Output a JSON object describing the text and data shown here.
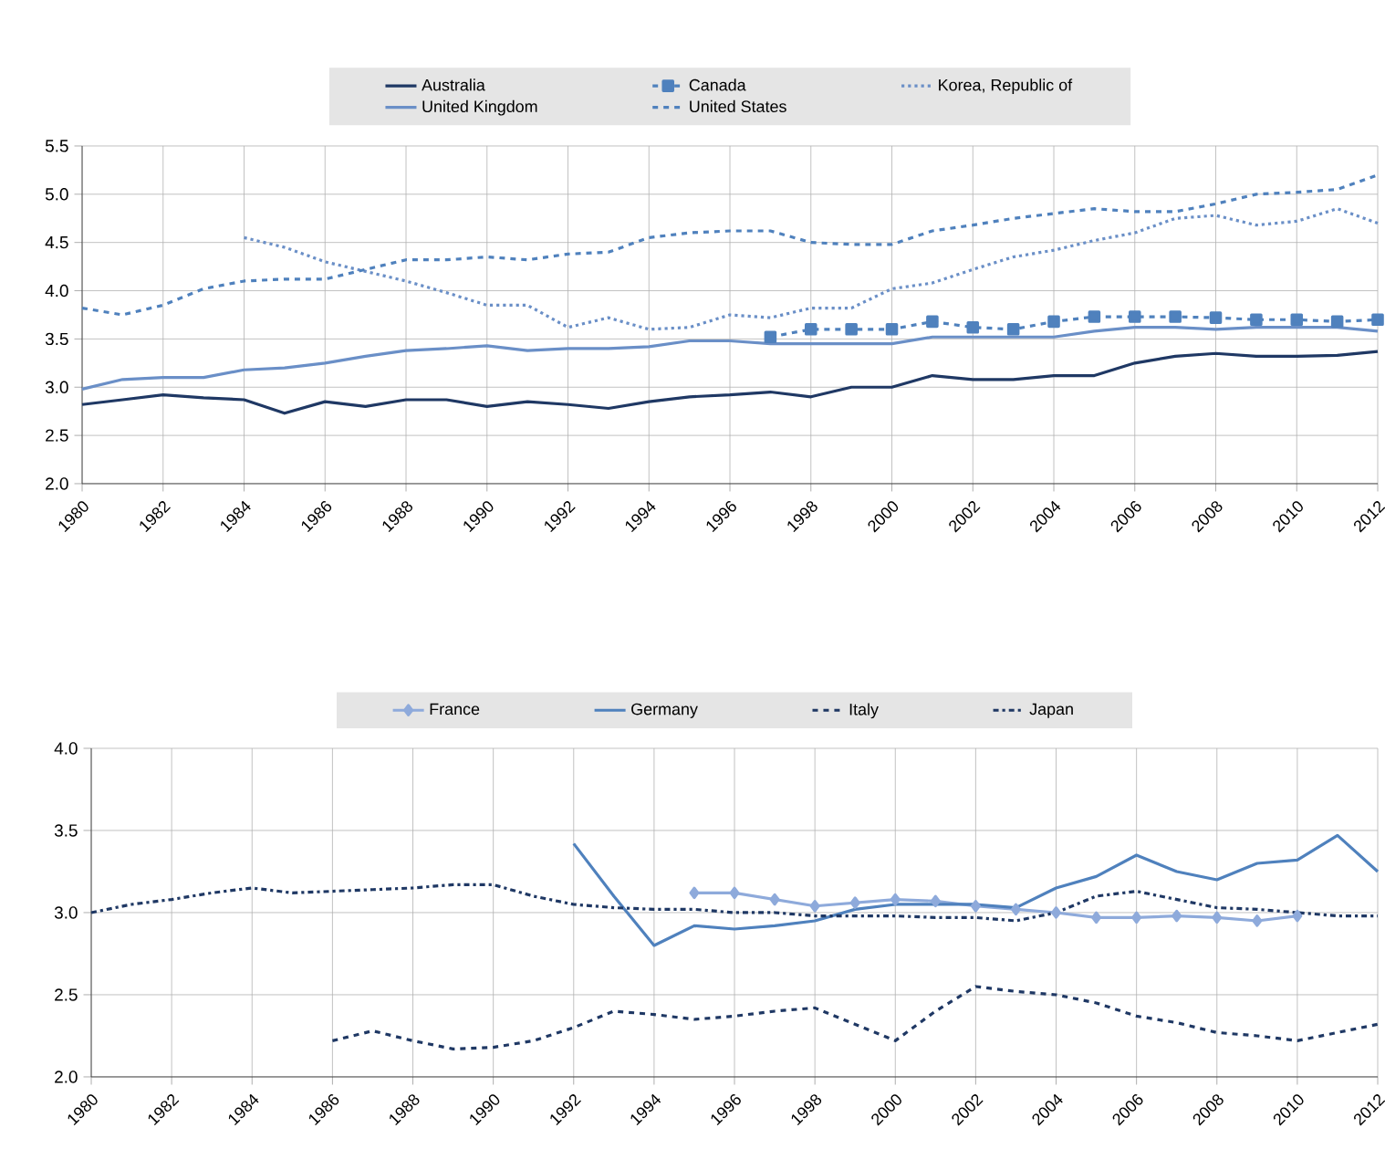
{
  "chart_data": [
    {
      "type": "line",
      "xlim": [
        1980,
        2012
      ],
      "ylim": [
        2.0,
        5.5
      ],
      "xticks": [
        1980,
        1982,
        1984,
        1986,
        1988,
        1990,
        1992,
        1994,
        1996,
        1998,
        2000,
        2002,
        2004,
        2006,
        2008,
        2010,
        2012
      ],
      "yticks": [
        {
          "value": 2.0,
          "label": "2.0"
        },
        {
          "value": 2.5,
          "label": "2.5"
        },
        {
          "value": 3.0,
          "label": "3.0"
        },
        {
          "value": 3.5,
          "label": "3.5"
        },
        {
          "value": 4.0,
          "label": "4.0"
        },
        {
          "value": 4.5,
          "label": "4.5"
        },
        {
          "value": 5.0,
          "label": "5.0"
        },
        {
          "value": 5.5,
          "label": "5.5"
        }
      ],
      "grid": true,
      "legend": "top",
      "series": [
        {
          "name": "Australia",
          "color": "#1f3864",
          "line_style": "solid",
          "x": [
            1980,
            1981,
            1982,
            1983,
            1984,
            1985,
            1986,
            1987,
            1988,
            1989,
            1990,
            1991,
            1992,
            1993,
            1994,
            1995,
            1996,
            1997,
            1998,
            1999,
            2000,
            2001,
            2002,
            2003,
            2004,
            2005,
            2006,
            2007,
            2008,
            2009,
            2010,
            2011,
            2012
          ],
          "values": [
            2.82,
            2.87,
            2.92,
            2.89,
            2.87,
            2.73,
            2.85,
            2.8,
            2.87,
            2.87,
            2.8,
            2.85,
            2.82,
            2.78,
            2.85,
            2.9,
            2.92,
            2.95,
            2.9,
            3.0,
            3.0,
            3.12,
            3.08,
            3.08,
            3.12,
            3.12,
            3.25,
            3.32,
            3.35,
            3.32,
            3.32,
            3.33,
            3.37
          ]
        },
        {
          "name": "Canada",
          "color": "#4f81bd",
          "line_style": "dashed",
          "marker": "square",
          "x": [
            1997,
            1998,
            1999,
            2000,
            2001,
            2002,
            2003,
            2004,
            2005,
            2006,
            2007,
            2008,
            2009,
            2010,
            2011,
            2012
          ],
          "values": [
            3.52,
            3.6,
            3.6,
            3.6,
            3.68,
            3.62,
            3.6,
            3.68,
            3.73,
            3.73,
            3.73,
            3.72,
            3.7,
            3.7,
            3.68,
            3.7
          ]
        },
        {
          "name": "Korea, Republic of",
          "color": "#6a8fc7",
          "line_style": "dotted",
          "x": [
            1984,
            1985,
            1986,
            1987,
            1988,
            1989,
            1990,
            1991,
            1992,
            1993,
            1994,
            1995,
            1996,
            1997,
            1998,
            1999,
            2000,
            2001,
            2002,
            2003,
            2004,
            2005,
            2006,
            2007,
            2008,
            2009,
            2010,
            2011,
            2012
          ],
          "values": [
            4.55,
            4.45,
            4.3,
            4.2,
            4.1,
            3.98,
            3.85,
            3.85,
            3.62,
            3.72,
            3.6,
            3.62,
            3.75,
            3.72,
            3.82,
            3.82,
            4.02,
            4.08,
            4.22,
            4.35,
            4.42,
            4.52,
            4.6,
            4.75,
            4.78,
            4.68,
            4.72,
            4.85,
            4.7
          ]
        },
        {
          "name": "United Kingdom",
          "color": "#6a8fc7",
          "line_style": "solid",
          "x": [
            1980,
            1981,
            1982,
            1983,
            1984,
            1985,
            1986,
            1987,
            1988,
            1989,
            1990,
            1991,
            1992,
            1993,
            1994,
            1995,
            1996,
            1997,
            1998,
            1999,
            2000,
            2001,
            2002,
            2003,
            2004,
            2005,
            2006,
            2007,
            2008,
            2009,
            2010,
            2011,
            2012
          ],
          "values": [
            2.98,
            3.08,
            3.1,
            3.1,
            3.18,
            3.2,
            3.25,
            3.32,
            3.38,
            3.4,
            3.43,
            3.38,
            3.4,
            3.4,
            3.42,
            3.48,
            3.48,
            3.45,
            3.45,
            3.45,
            3.45,
            3.52,
            3.52,
            3.52,
            3.52,
            3.58,
            3.62,
            3.62,
            3.6,
            3.62,
            3.62,
            3.62,
            3.58
          ]
        },
        {
          "name": "United States",
          "color": "#4f81bd",
          "line_style": "dashed",
          "x": [
            1980,
            1981,
            1982,
            1983,
            1984,
            1985,
            1986,
            1987,
            1988,
            1989,
            1990,
            1991,
            1992,
            1993,
            1994,
            1995,
            1996,
            1997,
            1998,
            1999,
            2000,
            2001,
            2002,
            2003,
            2004,
            2005,
            2006,
            2007,
            2008,
            2009,
            2010,
            2011,
            2012
          ],
          "values": [
            3.82,
            3.75,
            3.85,
            4.02,
            4.1,
            4.12,
            4.12,
            4.22,
            4.32,
            4.32,
            4.35,
            4.32,
            4.38,
            4.4,
            4.55,
            4.6,
            4.62,
            4.62,
            4.5,
            4.48,
            4.48,
            4.62,
            4.68,
            4.75,
            4.8,
            4.85,
            4.82,
            4.82,
            4.9,
            5.0,
            5.02,
            5.05,
            5.2
          ]
        }
      ]
    },
    {
      "type": "line",
      "xlim": [
        1980,
        2012
      ],
      "ylim": [
        2.0,
        4.0
      ],
      "xticks": [
        1980,
        1982,
        1984,
        1986,
        1988,
        1990,
        1992,
        1994,
        1996,
        1998,
        2000,
        2002,
        2004,
        2006,
        2008,
        2010,
        2012
      ],
      "yticks": [
        {
          "value": 2.0,
          "label": "2.0"
        },
        {
          "value": 2.5,
          "label": "2.5"
        },
        {
          "value": 3.0,
          "label": "3.0"
        },
        {
          "value": 3.5,
          "label": "3.5"
        },
        {
          "value": 4.0,
          "label": "4.0"
        }
      ],
      "grid": true,
      "legend": "top",
      "series": [
        {
          "name": "France",
          "color": "#8eaadb",
          "line_style": "solid",
          "marker": "diamond",
          "x": [
            1995,
            1996,
            1997,
            1998,
            1999,
            2000,
            2001,
            2002,
            2003,
            2004,
            2005,
            2006,
            2007,
            2008,
            2009,
            2010
          ],
          "values": [
            3.12,
            3.12,
            3.08,
            3.04,
            3.06,
            3.08,
            3.07,
            3.04,
            3.02,
            3.0,
            2.97,
            2.97,
            2.98,
            2.97,
            2.95,
            2.98
          ]
        },
        {
          "name": "Germany",
          "color": "#4f81bd",
          "line_style": "solid",
          "x": [
            1992,
            1993,
            1994,
            1995,
            1996,
            1997,
            1998,
            1999,
            2000,
            2001,
            2002,
            2003,
            2004,
            2005,
            2006,
            2007,
            2008,
            2009,
            2010,
            2011,
            2012
          ],
          "values": [
            3.42,
            3.1,
            2.8,
            2.92,
            2.9,
            2.92,
            2.95,
            3.02,
            3.05,
            3.05,
            3.05,
            3.03,
            3.15,
            3.22,
            3.35,
            3.25,
            3.2,
            3.3,
            3.32,
            3.47,
            3.25
          ]
        },
        {
          "name": "Italy",
          "color": "#1f3864",
          "line_style": "dashed",
          "x": [
            1986,
            1987,
            1988,
            1989,
            1990,
            1991,
            1992,
            1993,
            1994,
            1995,
            1996,
            1997,
            1998,
            1999,
            2000,
            2001,
            2002,
            2003,
            2004,
            2005,
            2006,
            2007,
            2008,
            2009,
            2010,
            2011,
            2012
          ],
          "values": [
            2.22,
            2.28,
            2.22,
            2.17,
            2.18,
            2.22,
            2.3,
            2.4,
            2.38,
            2.35,
            2.37,
            2.4,
            2.42,
            2.32,
            2.22,
            2.4,
            2.55,
            2.52,
            2.5,
            2.45,
            2.37,
            2.33,
            2.27,
            2.25,
            2.22,
            2.27,
            2.32
          ]
        },
        {
          "name": "Japan",
          "color": "#1f3864",
          "line_style": "dashdot",
          "x": [
            1980,
            1981,
            1982,
            1983,
            1984,
            1985,
            1986,
            1987,
            1988,
            1989,
            1990,
            1991,
            1992,
            1993,
            1994,
            1995,
            1996,
            1997,
            1998,
            1999,
            2000,
            2001,
            2002,
            2003,
            2004,
            2005,
            2006,
            2007,
            2008,
            2009,
            2010,
            2011,
            2012
          ],
          "values": [
            3.0,
            3.05,
            3.08,
            3.12,
            3.15,
            3.12,
            3.13,
            3.14,
            3.15,
            3.17,
            3.17,
            3.1,
            3.05,
            3.03,
            3.02,
            3.02,
            3.0,
            3.0,
            2.98,
            2.98,
            2.98,
            2.97,
            2.97,
            2.95,
            3.0,
            3.1,
            3.13,
            3.08,
            3.03,
            3.02,
            3.0,
            2.98,
            2.98
          ]
        }
      ]
    }
  ]
}
